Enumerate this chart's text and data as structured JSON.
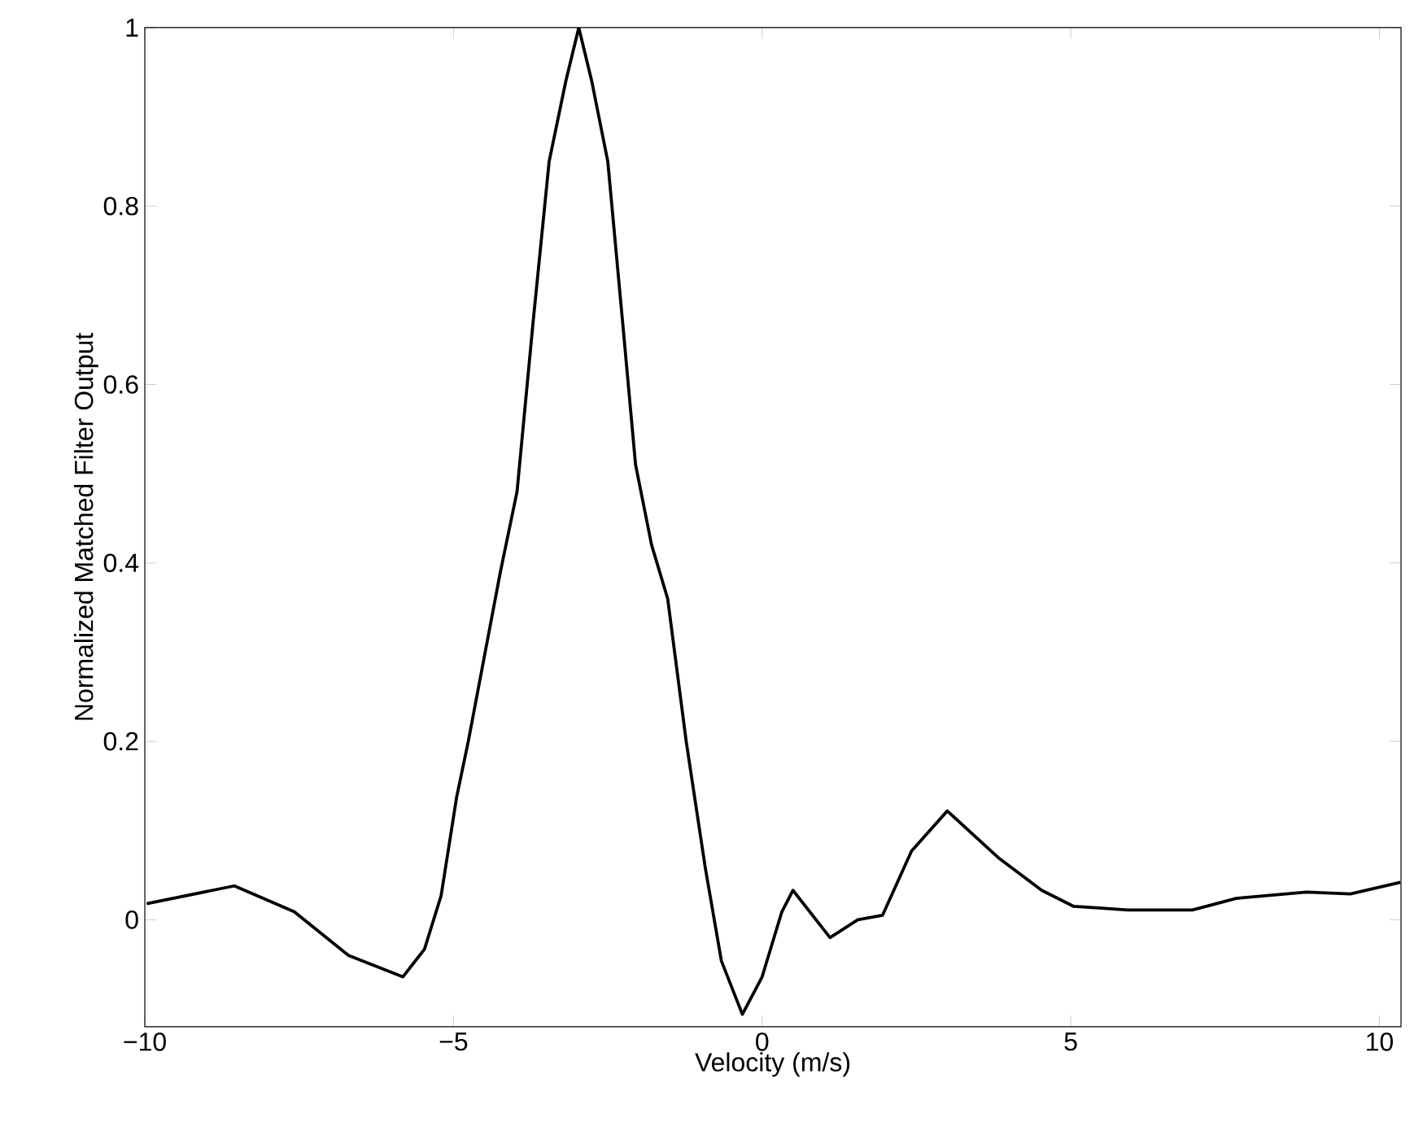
{
  "chart_data": {
    "type": "line",
    "xlabel": "Velocity (m/s)",
    "ylabel": "Normalized Matched Filter Output",
    "xlim": [
      -10,
      10.35
    ],
    "ylim": [
      -0.12,
      1
    ],
    "xticks": [
      {
        "value": -10,
        "label": "−10"
      },
      {
        "value": -5,
        "label": "−5"
      },
      0,
      5,
      10
    ],
    "yticks": [
      0,
      0.2,
      0.4,
      0.6,
      0.8,
      1
    ],
    "grid": false,
    "series": [
      {
        "color": "#000000",
        "x": [
          -9.97,
          -8.55,
          -7.58,
          -6.7,
          -5.82,
          -5.47,
          -5.2,
          -4.95,
          -4.76,
          -4.24,
          -3.97,
          -3.71,
          -3.45,
          -3.18,
          -2.97,
          -2.76,
          -2.5,
          -2.26,
          -2.05,
          -1.79,
          -1.53,
          -1.23,
          -0.92,
          -0.66,
          -0.32,
          0,
          0.32,
          0.5,
          1.1,
          1.55,
          1.95,
          2.42,
          3.0,
          3.82,
          4.53,
          5.05,
          5.5,
          5.92,
          6.97,
          7.68,
          8.82,
          9.53,
          10.34
        ],
        "values": [
          0.018,
          0.038,
          0.009,
          -0.04,
          -0.064,
          -0.033,
          0.027,
          0.137,
          0.2,
          0.39,
          0.48,
          0.67,
          0.85,
          0.94,
          1.0,
          0.94,
          0.85,
          0.67,
          0.51,
          0.42,
          0.36,
          0.2,
          0.058,
          -0.046,
          -0.106,
          -0.064,
          0.009,
          0.033,
          -0.02,
          0.0,
          0.005,
          0.077,
          0.122,
          0.07,
          0.033,
          0.015,
          0.013,
          0.011,
          0.011,
          0.024,
          0.031,
          0.029,
          0.042
        ]
      }
    ]
  }
}
